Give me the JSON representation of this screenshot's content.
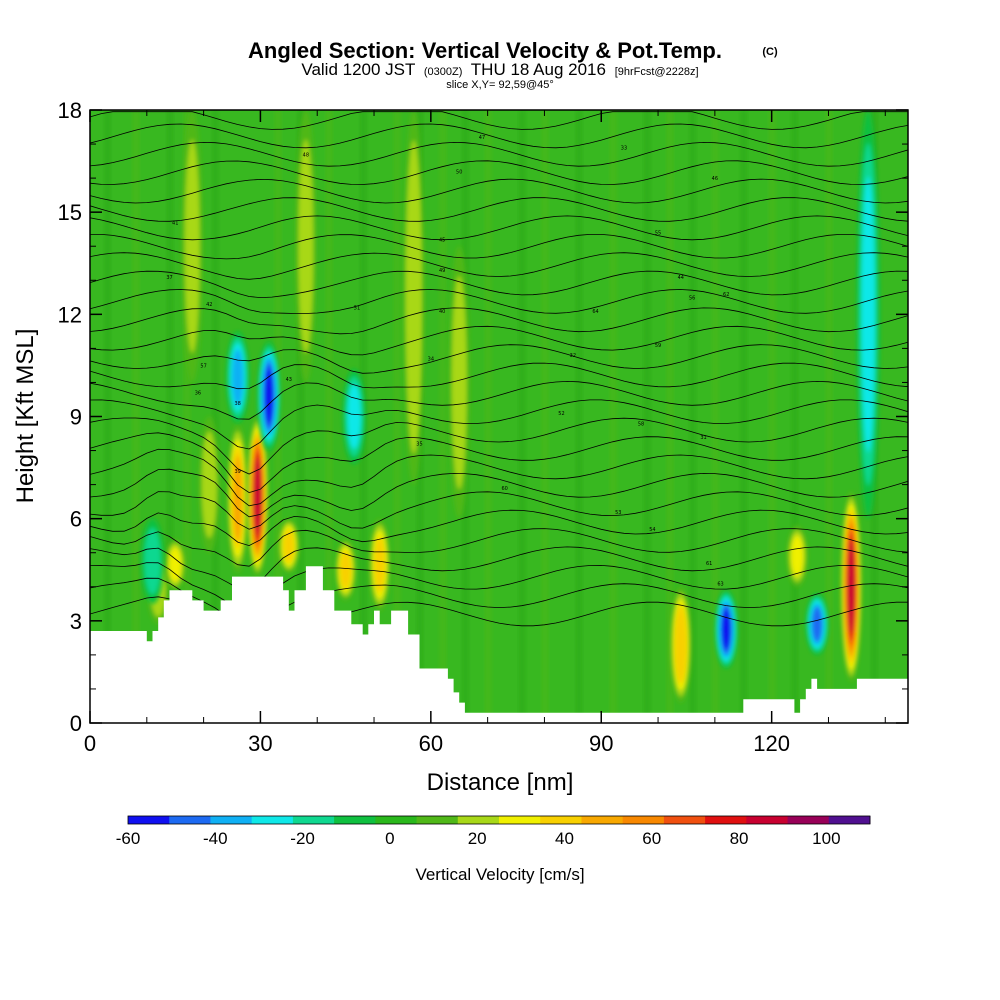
{
  "title": {
    "main": "Angled Section: Vertical Velocity & Pot.Temp.",
    "unit": "(C)",
    "valid_prefix": "Valid 1200 JST",
    "valid_utc": "(0300Z)",
    "valid_date": "THU 18 Aug 2016",
    "forecast": "[9hrFcst@2228z]",
    "slice": "slice X,Y= 92,59@45°"
  },
  "chart_data": {
    "type": "cross-section-contour",
    "xlabel": "Distance [nm]",
    "ylabel": "Height [Kft MSL]",
    "xlim": [
      0,
      144
    ],
    "ylim": [
      0,
      18
    ],
    "x_ticks": [
      "0",
      "30",
      "60",
      "90",
      "120"
    ],
    "y_ticks": [
      "0",
      "3",
      "6",
      "9",
      "12",
      "15",
      "18"
    ],
    "colorbar": {
      "label": "Vertical Velocity [cm/s]",
      "tick_labels": [
        "-60",
        "-40",
        "-20",
        "0",
        "20",
        "40",
        "60",
        "80",
        "100"
      ],
      "range": [
        -60,
        110
      ],
      "step": 10,
      "colors": [
        "#1010f0",
        "#1d6af2",
        "#10b0f4",
        "#10e8e8",
        "#10d890",
        "#10c040",
        "#2ab81c",
        "#50b818",
        "#a8d818",
        "#f0f000",
        "#f8d000",
        "#f8a800",
        "#f88800",
        "#f05010",
        "#e01010",
        "#c80030",
        "#980058",
        "#501090"
      ]
    },
    "background_level": "0 to 10 cm/s",
    "updrafts": [
      {
        "x": 12,
        "z_bottom": 2.9,
        "z_top": 4.9,
        "peak": 20
      },
      {
        "x": 15,
        "z_bottom": 3.9,
        "z_top": 5.4,
        "peak": 30
      },
      {
        "x": 18,
        "z_bottom": 10,
        "z_top": 18,
        "peak": 20
      },
      {
        "x": 21,
        "z_bottom": 5,
        "z_top": 9,
        "peak": 20
      },
      {
        "x": 26,
        "z_bottom": 4.4,
        "z_top": 8.8,
        "peak": 50
      },
      {
        "x": 29.5,
        "z_bottom": 4.3,
        "z_top": 9,
        "peak": 90
      },
      {
        "x": 35,
        "z_bottom": 4.4,
        "z_top": 6,
        "peak": 40
      },
      {
        "x": 38,
        "z_bottom": 10,
        "z_top": 18,
        "peak": 20
      },
      {
        "x": 45,
        "z_bottom": 3.6,
        "z_top": 5.4,
        "peak": 40
      },
      {
        "x": 51,
        "z_bottom": 3.3,
        "z_top": 6,
        "peak": 40
      },
      {
        "x": 57,
        "z_bottom": 7,
        "z_top": 18,
        "peak": 25
      },
      {
        "x": 65,
        "z_bottom": 6,
        "z_top": 14,
        "peak": 20
      },
      {
        "x": 104,
        "z_bottom": 0.6,
        "z_top": 4,
        "peak": 45
      },
      {
        "x": 124.5,
        "z_bottom": 4,
        "z_top": 5.8,
        "peak": 30
      },
      {
        "x": 134,
        "z_bottom": 1.2,
        "z_top": 6.8,
        "peak": 90
      }
    ],
    "downdrafts": [
      {
        "x": 11,
        "z_bottom": 3.5,
        "z_top": 6,
        "peak": -20
      },
      {
        "x": 26,
        "z_bottom": 8.8,
        "z_top": 11.5,
        "peak": -40
      },
      {
        "x": 31.5,
        "z_bottom": 8,
        "z_top": 11.2,
        "peak": -60
      },
      {
        "x": 46.5,
        "z_bottom": 7.6,
        "z_top": 10.4,
        "peak": -30
      },
      {
        "x": 112,
        "z_bottom": 1.6,
        "z_top": 3.9,
        "peak": -60
      },
      {
        "x": 128,
        "z_bottom": 2,
        "z_top": 3.8,
        "peak": -50
      },
      {
        "x": 137,
        "z_bottom": 6,
        "z_top": 18,
        "peak": -30
      }
    ],
    "terrain_kft": [
      [
        0,
        2.7
      ],
      [
        10,
        2.7
      ],
      [
        10,
        2.4
      ],
      [
        11,
        2.4
      ],
      [
        11,
        2.7
      ],
      [
        12,
        2.7
      ],
      [
        12,
        3.1
      ],
      [
        13,
        3.1
      ],
      [
        13,
        3.6
      ],
      [
        14,
        3.6
      ],
      [
        14,
        3.9
      ],
      [
        18,
        3.9
      ],
      [
        18,
        3.6
      ],
      [
        20,
        3.6
      ],
      [
        20,
        3.3
      ],
      [
        23,
        3.3
      ],
      [
        23,
        3.6
      ],
      [
        25,
        3.6
      ],
      [
        25,
        4.3
      ],
      [
        34,
        4.3
      ],
      [
        34,
        3.9
      ],
      [
        35,
        3.9
      ],
      [
        35,
        3.3
      ],
      [
        36,
        3.3
      ],
      [
        36,
        3.9
      ],
      [
        38,
        3.9
      ],
      [
        38,
        4.6
      ],
      [
        41,
        4.6
      ],
      [
        41,
        3.9
      ],
      [
        43,
        3.9
      ],
      [
        43,
        3.3
      ],
      [
        46,
        3.3
      ],
      [
        46,
        2.9
      ],
      [
        48,
        2.9
      ],
      [
        48,
        2.6
      ],
      [
        49,
        2.6
      ],
      [
        49,
        2.9
      ],
      [
        50,
        2.9
      ],
      [
        50,
        3.3
      ],
      [
        51,
        3.3
      ],
      [
        51,
        2.9
      ],
      [
        53,
        2.9
      ],
      [
        53,
        3.3
      ],
      [
        56,
        3.3
      ],
      [
        56,
        2.6
      ],
      [
        58,
        2.6
      ],
      [
        58,
        1.6
      ],
      [
        63,
        1.6
      ],
      [
        63,
        1.3
      ],
      [
        64,
        1.3
      ],
      [
        64,
        0.9
      ],
      [
        65,
        0.9
      ],
      [
        65,
        0.6
      ],
      [
        66,
        0.6
      ],
      [
        66,
        0.3
      ],
      [
        115,
        0.3
      ],
      [
        115,
        0.7
      ],
      [
        124,
        0.7
      ],
      [
        124,
        0.3
      ],
      [
        125,
        0.3
      ],
      [
        125,
        0.7
      ],
      [
        126,
        0.7
      ],
      [
        126,
        1.0
      ],
      [
        127,
        1.0
      ],
      [
        127,
        1.3
      ],
      [
        128,
        1.3
      ],
      [
        128,
        1.0
      ],
      [
        135,
        1.0
      ],
      [
        135,
        1.3
      ],
      [
        144,
        1.3
      ]
    ],
    "isentropes": [
      {
        "label": "31",
        "x": 108,
        "z": 8.4
      },
      {
        "label": "32",
        "x": 85,
        "z": 10.8
      },
      {
        "label": "33",
        "x": 94,
        "z": 16.9
      },
      {
        "label": "34",
        "x": 60,
        "z": 10.7
      },
      {
        "label": "35",
        "x": 58,
        "z": 8.2
      },
      {
        "label": "36",
        "x": 19,
        "z": 9.7
      },
      {
        "label": "37",
        "x": 14,
        "z": 13.1
      },
      {
        "label": "38",
        "x": 26,
        "z": 9.4
      },
      {
        "label": "39",
        "x": 26,
        "z": 7.4
      },
      {
        "label": "40",
        "x": 62,
        "z": 12.1
      },
      {
        "label": "41",
        "x": 15,
        "z": 14.7
      },
      {
        "label": "42",
        "x": 21,
        "z": 12.3
      },
      {
        "label": "43",
        "x": 35,
        "z": 10.1
      },
      {
        "label": "44",
        "x": 104,
        "z": 13.1
      },
      {
        "label": "45",
        "x": 62,
        "z": 14.2
      },
      {
        "label": "46",
        "x": 110,
        "z": 16.0
      },
      {
        "label": "47",
        "x": 69,
        "z": 17.2
      },
      {
        "label": "48",
        "x": 38,
        "z": 16.7
      },
      {
        "label": "49",
        "x": 62,
        "z": 13.3
      },
      {
        "label": "50",
        "x": 65,
        "z": 16.2
      },
      {
        "label": "51",
        "x": 47,
        "z": 12.2
      },
      {
        "label": "52",
        "x": 83,
        "z": 9.1
      },
      {
        "label": "53",
        "x": 93,
        "z": 6.2
      },
      {
        "label": "54",
        "x": 99,
        "z": 5.7
      },
      {
        "label": "55",
        "x": 100,
        "z": 14.4
      },
      {
        "label": "56",
        "x": 106,
        "z": 12.5
      },
      {
        "label": "57",
        "x": 20,
        "z": 10.5
      },
      {
        "label": "58",
        "x": 97,
        "z": 8.8
      },
      {
        "label": "59",
        "x": 100,
        "z": 11.1
      },
      {
        "label": "60",
        "x": 73,
        "z": 6.9
      },
      {
        "label": "61",
        "x": 109,
        "z": 4.7
      },
      {
        "label": "62",
        "x": 112,
        "z": 12.6
      },
      {
        "label": "63",
        "x": 111,
        "z": 4.1
      },
      {
        "label": "64",
        "x": 89,
        "z": 12.1
      }
    ]
  }
}
